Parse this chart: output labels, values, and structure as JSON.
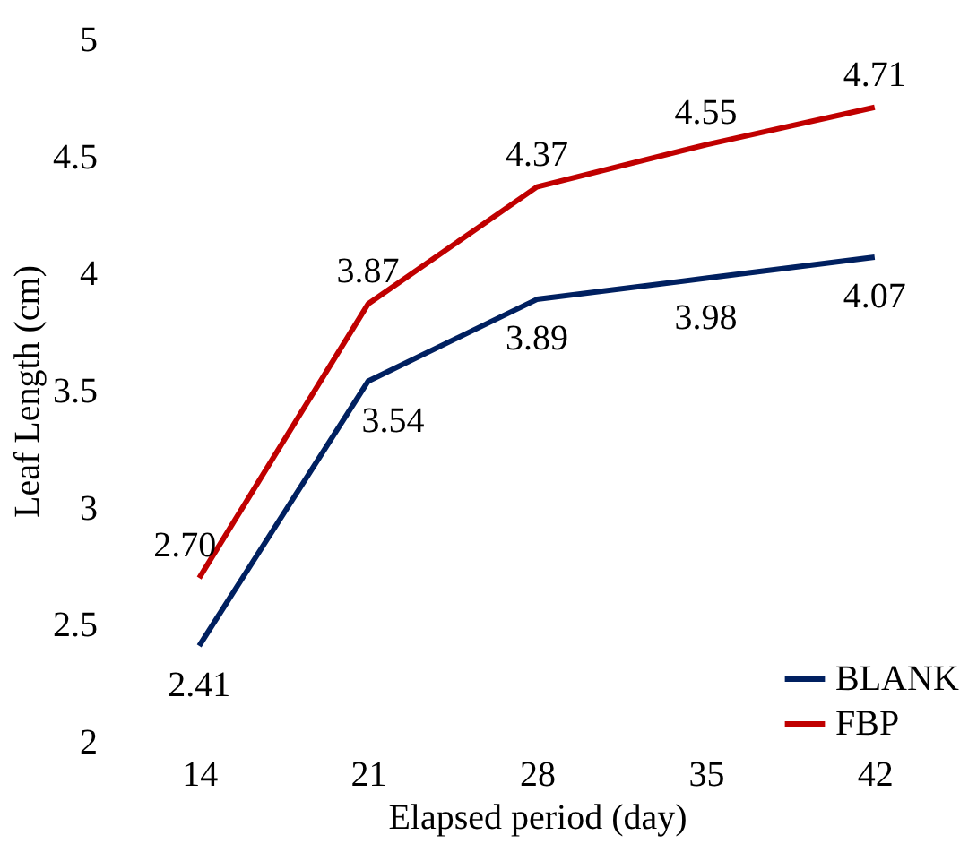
{
  "chart_data": {
    "type": "line",
    "xlabel": "Elapsed period (day)",
    "ylabel": "Leaf Length (cm)",
    "categories": [
      "14",
      "21",
      "28",
      "35",
      "42"
    ],
    "series": [
      {
        "name": "BLANK",
        "color": "#002060",
        "values": [
          2.41,
          3.54,
          3.89,
          3.98,
          4.07
        ],
        "value_labels": [
          "2.41",
          "3.54",
          "3.89",
          "3.98",
          "4.07"
        ]
      },
      {
        "name": "FBP",
        "color": "#c00000",
        "values": [
          2.7,
          3.87,
          4.37,
          4.55,
          4.71
        ],
        "value_labels": [
          "2.70",
          "3.87",
          "4.37",
          "4.55",
          "4.71"
        ]
      }
    ],
    "ylim": [
      2,
      5
    ],
    "yticks": [
      2,
      2.5,
      3,
      3.5,
      4,
      4.5,
      5
    ],
    "grid": false,
    "legend": "bottom right",
    "marker": "none"
  }
}
